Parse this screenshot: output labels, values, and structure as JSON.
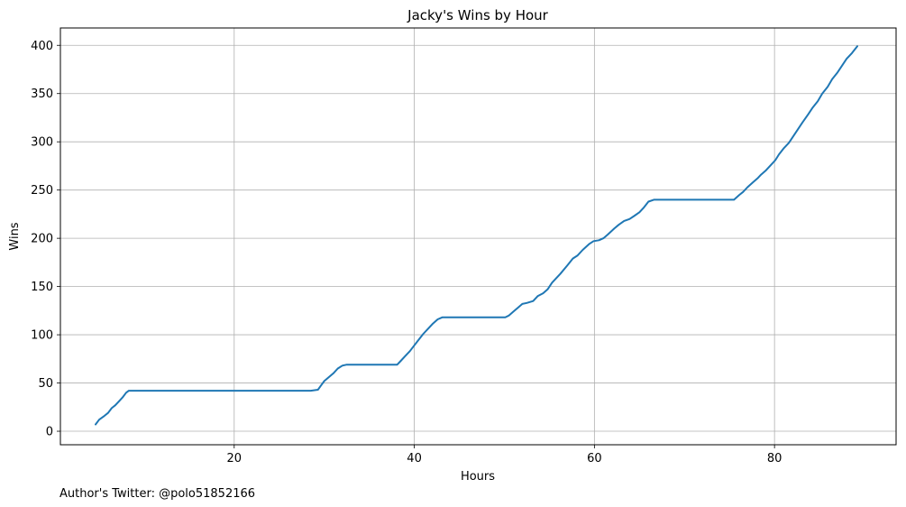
{
  "chart_data": {
    "type": "line",
    "title": "Jacky's Wins by Hour",
    "xlabel": "Hours",
    "ylabel": "Wins",
    "xlim": [
      0.7,
      93.5
    ],
    "ylim": [
      -14,
      418
    ],
    "xticks": [
      20,
      40,
      60,
      80
    ],
    "yticks": [
      0,
      50,
      100,
      150,
      200,
      250,
      300,
      350,
      400
    ],
    "grid": true,
    "line_color": "#1f77b4",
    "series": [
      {
        "x": [
          4.6,
          5.0,
          5.6,
          6.0,
          6.4,
          6.8,
          7.2,
          7.6,
          8.0,
          8.3,
          9,
          15,
          20,
          25,
          28.5,
          29.3,
          29.6,
          30.0,
          30.5,
          31.0,
          31.5,
          32.0,
          32.5,
          33,
          35,
          38.1,
          38.5,
          39,
          39.5,
          40,
          40.5,
          41,
          41.5,
          42,
          42.6,
          43.1,
          45,
          48,
          50.1,
          50.5,
          51,
          51.5,
          52,
          52.5,
          53.2,
          53.7,
          54.3,
          54.8,
          55.3,
          56.2,
          57,
          57.6,
          58.1,
          58.7,
          59.4,
          59.9,
          60.5,
          61,
          61.5,
          62.2,
          62.7,
          63.3,
          63.9,
          64.4,
          65,
          65.5,
          66,
          66.6,
          67,
          70,
          73,
          75.5,
          76.1,
          76.5,
          77,
          77.6,
          78.1,
          78.5,
          79,
          79.6,
          80.1,
          80.5,
          81,
          81.6,
          82.1,
          82.6,
          83.1,
          83.7,
          84.2,
          84.8,
          85.3,
          85.9,
          86.4,
          87,
          87.5,
          88,
          88.6,
          89.2
        ],
        "values": [
          7,
          12,
          16,
          19,
          24,
          27,
          31,
          35,
          40,
          42,
          42,
          42,
          42,
          42,
          42,
          43,
          47,
          52,
          56,
          60,
          65,
          68,
          69,
          69,
          69,
          69,
          73,
          78,
          83,
          89,
          95,
          101,
          106,
          111,
          116,
          118,
          118,
          118,
          118,
          120,
          124,
          128,
          132,
          133,
          135,
          140,
          143,
          147,
          154,
          163,
          172,
          179,
          182,
          188,
          194,
          197,
          198,
          200,
          204,
          210,
          214,
          218,
          220,
          223,
          227,
          232,
          238,
          240,
          240,
          240,
          240,
          240,
          245,
          248,
          253,
          258,
          262,
          266,
          270,
          276,
          281,
          287,
          293,
          299,
          306,
          313,
          320,
          328,
          335,
          342,
          350,
          357,
          365,
          372,
          379,
          386,
          392,
          399
        ]
      }
    ]
  },
  "footer": {
    "credit": "Author's Twitter: @polo51852166"
  }
}
